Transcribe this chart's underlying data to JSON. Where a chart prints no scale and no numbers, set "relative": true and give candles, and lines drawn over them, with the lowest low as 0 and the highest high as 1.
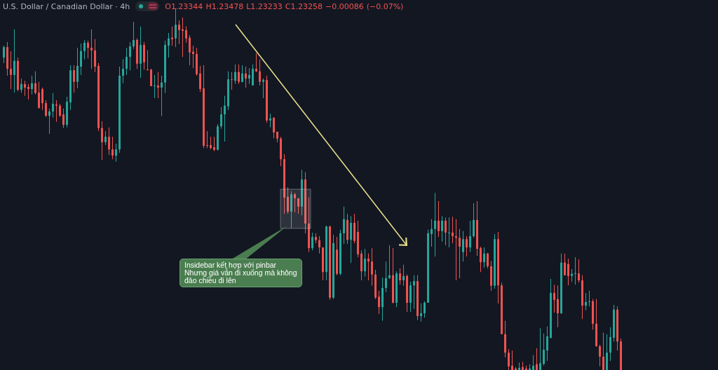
{
  "chart_data": {
    "type": "candlestick",
    "relative": true,
    "title": "U.S. Dollar / Canadian Dollar · 4h",
    "subtitle": "O1.23344 H1.23478 L1.23233 C1.23258 −0.00086 (−0.07%)",
    "annotations": [
      "Insidebar kết hợp với pinbar\nNhưng giá vẫn đi xuống mà không\nđảo chiều đi lên"
    ],
    "categories": [
      null,
      null,
      null,
      null,
      null,
      null,
      null,
      null,
      null,
      null,
      null,
      null,
      null,
      null,
      null,
      null,
      null,
      null,
      null,
      null,
      null,
      null,
      null,
      null,
      null,
      null,
      null,
      null,
      null,
      null,
      null,
      null,
      null,
      null,
      null,
      null,
      null,
      null,
      null,
      null,
      null,
      null,
      null,
      null,
      null,
      null,
      null,
      null,
      null,
      null,
      null,
      null,
      null,
      null,
      null,
      null,
      null,
      null,
      null,
      null,
      null,
      null,
      null,
      null,
      null,
      null,
      null,
      null,
      null,
      null,
      null,
      null,
      null,
      null,
      null,
      null,
      null,
      null,
      null,
      null,
      null,
      null,
      null,
      null,
      null,
      null,
      null,
      null,
      null,
      null,
      null,
      null,
      null,
      null,
      null,
      null,
      null,
      null,
      null,
      null,
      null,
      null,
      null,
      null,
      null,
      null,
      null,
      null,
      null,
      null,
      null,
      null,
      null,
      null,
      null,
      null,
      null,
      null,
      null,
      null,
      null,
      null,
      null,
      null,
      null,
      null,
      null,
      null,
      null,
      null,
      null,
      null,
      null,
      null,
      null,
      null,
      null,
      null,
      null,
      null,
      null,
      null,
      null,
      null,
      null,
      null,
      null,
      null,
      null,
      null,
      null,
      null,
      null,
      null,
      null,
      null,
      null,
      null,
      null,
      null,
      null,
      null,
      null,
      null,
      null,
      null,
      null,
      null,
      null,
      null,
      null,
      null,
      null,
      null,
      null,
      null,
      null
    ],
    "ohlc": [
      [
        0.864,
        0.897,
        0.849,
        0.893
      ],
      [
        0.893,
        0.907,
        0.814,
        0.833
      ],
      [
        0.833,
        0.882,
        0.777,
        0.816
      ],
      [
        0.816,
        0.942,
        0.767,
        0.855
      ],
      [
        0.855,
        0.864,
        0.771,
        0.775
      ],
      [
        0.775,
        0.806,
        0.767,
        0.791
      ],
      [
        0.791,
        0.8,
        0.758,
        0.781
      ],
      [
        0.783,
        0.791,
        0.748,
        0.777
      ],
      [
        0.777,
        0.814,
        0.762,
        0.793
      ],
      [
        0.793,
        0.826,
        0.762,
        0.766
      ],
      [
        0.767,
        0.797,
        0.723,
        0.725
      ],
      [
        0.777,
        0.781,
        0.719,
        0.738
      ],
      [
        0.738,
        0.746,
        0.7,
        0.703
      ],
      [
        0.703,
        0.723,
        0.653,
        0.715
      ],
      [
        0.715,
        0.766,
        0.698,
        0.736
      ],
      [
        0.734,
        0.746,
        0.686,
        0.731
      ],
      [
        0.731,
        0.736,
        0.7,
        0.703
      ],
      [
        0.707,
        0.723,
        0.669,
        0.678
      ],
      [
        0.678,
        0.756,
        0.671,
        0.742
      ],
      [
        0.74,
        0.843,
        0.719,
        0.829
      ],
      [
        0.829,
        0.843,
        0.767,
        0.797
      ],
      [
        0.797,
        0.891,
        0.779,
        0.841
      ],
      [
        0.839,
        0.903,
        0.816,
        0.882
      ],
      [
        0.882,
        0.913,
        0.859,
        0.905
      ],
      [
        0.905,
        0.911,
        0.862,
        0.891
      ],
      [
        0.891,
        0.942,
        0.833,
        0.884
      ],
      [
        0.884,
        0.915,
        0.824,
        0.839
      ],
      [
        0.841,
        0.849,
        0.661,
        0.669
      ],
      [
        0.669,
        0.688,
        0.581,
        0.63
      ],
      [
        0.63,
        0.661,
        0.622,
        0.645
      ],
      [
        0.645,
        0.671,
        0.595,
        0.61
      ],
      [
        0.61,
        0.645,
        0.583,
        0.593
      ],
      [
        0.593,
        0.626,
        0.576,
        0.61
      ],
      [
        0.61,
        0.839,
        0.601,
        0.814
      ],
      [
        0.814,
        0.86,
        0.793,
        0.833
      ],
      [
        0.833,
        0.891,
        0.816,
        0.866
      ],
      [
        0.866,
        0.907,
        0.829,
        0.895
      ],
      [
        0.895,
        0.963,
        0.888,
        0.913
      ],
      [
        0.913,
        0.917,
        0.833,
        0.847
      ],
      [
        0.847,
        0.95,
        0.808,
        0.899
      ],
      [
        0.899,
        0.907,
        0.831,
        0.851
      ],
      [
        0.831,
        0.884,
        0.829,
        0.829
      ],
      [
        0.831,
        0.833,
        0.785,
        0.785
      ],
      [
        0.785,
        0.816,
        0.752,
        0.787
      ],
      [
        0.787,
        0.824,
        0.752,
        0.781
      ],
      [
        0.781,
        0.814,
        0.702,
        0.795
      ],
      [
        0.795,
        0.911,
        0.766,
        0.899
      ],
      [
        0.897,
        0.932,
        0.864,
        0.917
      ],
      [
        0.919,
        0.95,
        0.897,
        0.915
      ],
      [
        0.917,
        1,
        0.893,
        0.955
      ],
      [
        0.955,
        0.967,
        0.901,
        0.94
      ],
      [
        0.942,
        0.975,
        0.866,
        0.938
      ],
      [
        0.94,
        0.95,
        0.905,
        0.917
      ],
      [
        0.919,
        0.926,
        0.843,
        0.878
      ],
      [
        0.88,
        0.897,
        0.835,
        0.874
      ],
      [
        0.874,
        0.891,
        0.814,
        0.818
      ],
      [
        0.82,
        0.841,
        0.769,
        0.777
      ],
      [
        0.779,
        0.843,
        0.614,
        0.62
      ],
      [
        0.622,
        0.661,
        0.614,
        0.62
      ],
      [
        0.622,
        0.645,
        0.61,
        0.614
      ],
      [
        0.616,
        0.645,
        0.605,
        0.609
      ],
      [
        0.609,
        0.68,
        0.607,
        0.674
      ],
      [
        0.674,
        0.727,
        0.667,
        0.707
      ],
      [
        0.707,
        0.758,
        0.632,
        0.731
      ],
      [
        0.729,
        0.826,
        0.719,
        0.804
      ],
      [
        0.804,
        0.824,
        0.775,
        0.802
      ],
      [
        0.8,
        0.845,
        0.791,
        0.824
      ],
      [
        0.824,
        0.845,
        0.791,
        0.797
      ],
      [
        0.797,
        0.843,
        0.795,
        0.82
      ],
      [
        0.82,
        0.839,
        0.781,
        0.806
      ],
      [
        0.806,
        0.835,
        0.791,
        0.816
      ],
      [
        0.787,
        0.845,
        0.787,
        0.833
      ],
      [
        0.833,
        0.876,
        0.824,
        0.826
      ],
      [
        0.826,
        0.859,
        0.787,
        0.797
      ],
      [
        0.797,
        0.806,
        0.752,
        0.802
      ],
      [
        0.802,
        0.814,
        0.684,
        0.69
      ],
      [
        0.69,
        0.709,
        0.671,
        0.696
      ],
      [
        0.698,
        0.698,
        0.641,
        0.657
      ],
      [
        0.659,
        0.659,
        0.63,
        0.64
      ],
      [
        0.64,
        0.645,
        0.564,
        0.583
      ],
      [
        0.583,
        0.597,
        0.432,
        0.477
      ],
      [
        0.479,
        0.506,
        0.432,
        0.438
      ],
      [
        0.438,
        0.494,
        0.393,
        0.486
      ],
      [
        0.486,
        0.49,
        0.436,
        0.475
      ],
      [
        0.475,
        0.475,
        0.432,
        0.452
      ],
      [
        0.452,
        0.554,
        0.428,
        0.527
      ],
      [
        0.527,
        0.547,
        0.378,
        0.405
      ],
      [
        0.405,
        0.477,
        0.326,
        0.337
      ],
      [
        0.337,
        0.38,
        0.331,
        0.368
      ],
      [
        0.368,
        0.378,
        0.351,
        0.359
      ],
      [
        0.359,
        0.37,
        0.322,
        0.339
      ],
      [
        0.339,
        0.339,
        0.248,
        0.271
      ],
      [
        0.271,
        0.399,
        0.248,
        0.397
      ],
      [
        0.397,
        0.399,
        0.194,
        0.2
      ],
      [
        0.2,
        0.374,
        0.196,
        0.351
      ],
      [
        0.333,
        0.368,
        0.262,
        0.266
      ],
      [
        0.266,
        0.388,
        0.262,
        0.378
      ],
      [
        0.378,
        0.452,
        0.349,
        0.417
      ],
      [
        0.415,
        0.432,
        0.349,
        0.36
      ],
      [
        0.36,
        0.426,
        0.296,
        0.407
      ],
      [
        0.407,
        0.432,
        0.351,
        0.357
      ],
      [
        0.382,
        0.413,
        0.312,
        0.32
      ],
      [
        0.322,
        0.331,
        0.248,
        0.273
      ],
      [
        0.273,
        0.335,
        0.258,
        0.308
      ],
      [
        0.308,
        0.322,
        0.248,
        0.3
      ],
      [
        0.3,
        0.337,
        0.233,
        0.264
      ],
      [
        0.264,
        0.277,
        0.196,
        0.2
      ],
      [
        0.203,
        0.219,
        0.155,
        0.174
      ],
      [
        0.174,
        0.256,
        0.136,
        0.227
      ],
      [
        0.227,
        0.3,
        0.215,
        0.254
      ],
      [
        0.254,
        0.345,
        0.252,
        0.262
      ],
      [
        0.262,
        0.337,
        0.184,
        0.186
      ],
      [
        0.186,
        0.273,
        0.174,
        0.267
      ],
      [
        0.267,
        0.281,
        0.236,
        0.248
      ],
      [
        0.248,
        0.291,
        0.233,
        0.26
      ],
      [
        0.26,
        0.264,
        0.161,
        0.186
      ],
      [
        0.186,
        0.244,
        0.161,
        0.234
      ],
      [
        0.234,
        0.262,
        0.169,
        0.246
      ],
      [
        0.246,
        0.262,
        0.138,
        0.149
      ],
      [
        0.149,
        0.184,
        0.134,
        0.157
      ],
      [
        0.157,
        0.19,
        0.145,
        0.186
      ],
      [
        0.186,
        0.388,
        0.186,
        0.378
      ],
      [
        0.376,
        0.417,
        0.341,
        0.39
      ],
      [
        0.39,
        0.49,
        0.314,
        0.413
      ],
      [
        0.413,
        0.467,
        0.368,
        0.384
      ],
      [
        0.384,
        0.426,
        0.355,
        0.413
      ],
      [
        0.413,
        0.422,
        0.345,
        0.38
      ],
      [
        0.378,
        0.422,
        0.339,
        0.38
      ],
      [
        0.38,
        0.424,
        0.351,
        0.37
      ],
      [
        0.37,
        0.417,
        0.248,
        0.366
      ],
      [
        0.366,
        0.39,
        0.254,
        0.341
      ],
      [
        0.326,
        0.384,
        0.3,
        0.362
      ],
      [
        0.362,
        0.37,
        0.314,
        0.339
      ],
      [
        0.339,
        0.413,
        0.326,
        0.37
      ],
      [
        0.37,
        0.461,
        0.366,
        0.415
      ],
      [
        0.415,
        0.467,
        0.316,
        0.335
      ],
      [
        0.337,
        0.341,
        0.271,
        0.298
      ],
      [
        0.298,
        0.339,
        0.283,
        0.322
      ],
      [
        0.322,
        0.324,
        0.281,
        0.287
      ],
      [
        0.287,
        0.302,
        0.219,
        0.233
      ],
      [
        0.233,
        0.376,
        0.225,
        0.362
      ],
      [
        0.362,
        0.382,
        0.184,
        0.234
      ],
      [
        0.234,
        0.242,
        0.099,
        0.099
      ],
      [
        0.099,
        0.136,
        0.035,
        0.048
      ],
      [
        0.048,
        0.058,
        0,
        0.01
      ],
      [
        0.012,
        0.054,
        0,
        0
      ],
      [
        0.004,
        0.008,
        0,
        0
      ],
      [
        0,
        0.021,
        0,
        0.006
      ],
      [
        0.008,
        0.023,
        0,
        0
      ],
      [
        0.004,
        0.012,
        0,
        0
      ],
      [
        0,
        0.016,
        0,
        0.004
      ],
      [
        0,
        0.041,
        0,
        0.012
      ],
      [
        0.016,
        0.06,
        0,
        0
      ],
      [
        0,
        0.116,
        0,
        0.019
      ],
      [
        0.017,
        0.101,
        0.012,
        0.056
      ],
      [
        0.054,
        0.12,
        0.025,
        0.093
      ],
      [
        0.089,
        0.252,
        0.087,
        0.213
      ],
      [
        0.213,
        0.236,
        0.159,
        0.194
      ],
      [
        0.196,
        0.234,
        0.118,
        0.157
      ],
      [
        0.157,
        0.322,
        0.155,
        0.297
      ],
      [
        0.297,
        0.322,
        0.262,
        0.262
      ],
      [
        0.293,
        0.308,
        0.234,
        0.26
      ],
      [
        0.26,
        0.279,
        0.244,
        0.266
      ],
      [
        0.266,
        0.312,
        0.236,
        0.267
      ],
      [
        0.267,
        0.306,
        0.242,
        0.248
      ],
      [
        0.248,
        0.262,
        0.141,
        0.178
      ],
      [
        0.178,
        0.213,
        0.165,
        0.188
      ],
      [
        0.188,
        0.219,
        0.176,
        0.19
      ],
      [
        0.19,
        0.196,
        0.112,
        0.128
      ],
      [
        0.128,
        0.196,
        0.064,
        0.066
      ],
      [
        0.066,
        0.07,
        0.01,
        0.037
      ],
      [
        0.037,
        0.103,
        0,
        0
      ],
      [
        0,
        0.099,
        0,
        0.048
      ],
      [
        0.048,
        0.118,
        0.025,
        0.091
      ],
      [
        0.089,
        0.18,
        0.078,
        0.167
      ],
      [
        0.167,
        0.176,
        0.054,
        0.079
      ],
      [
        0.079,
        0.087,
        0,
        0
      ]
    ]
  }
}
